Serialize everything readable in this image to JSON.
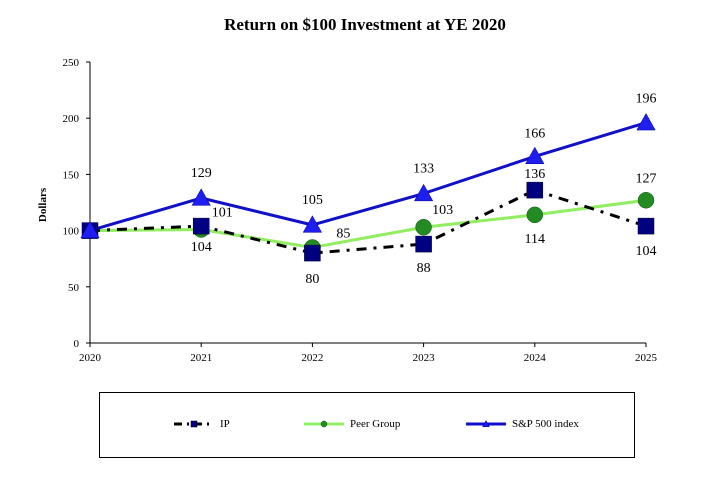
{
  "chart_data": {
    "type": "line",
    "title": "Return on $100 Investment at YE 2020",
    "xlabel": "",
    "ylabel": "Dollars",
    "categories": [
      "2020",
      "2021",
      "2022",
      "2023",
      "2024",
      "2025"
    ],
    "ylim": [
      0,
      250
    ],
    "yticks": [
      0,
      50,
      100,
      150,
      200,
      250
    ],
    "grid": false,
    "legend_position": "bottom",
    "series": [
      {
        "name": "IP",
        "values": [
          100,
          104,
          80,
          88,
          136,
          104
        ],
        "labels": [
          "",
          "104",
          "80",
          "88",
          "136",
          "104"
        ],
        "color": "#000000",
        "marker_color": "#000080",
        "marker": "square",
        "style": "dash-dot"
      },
      {
        "name": "Peer Group",
        "values": [
          100,
          101,
          85,
          103,
          114,
          127
        ],
        "labels": [
          "",
          "101",
          "85",
          "103",
          "114",
          "127"
        ],
        "color": "#90EE60",
        "marker_color": "#228B22",
        "marker": "circle",
        "style": "solid"
      },
      {
        "name": "S&P 500 index",
        "values": [
          100,
          129,
          105,
          133,
          166,
          196
        ],
        "labels": [
          "",
          "129",
          "105",
          "133",
          "166",
          "196"
        ],
        "color": "#1010C8",
        "marker_color": "#1E1EF0",
        "marker": "triangle",
        "style": "solid"
      }
    ]
  }
}
